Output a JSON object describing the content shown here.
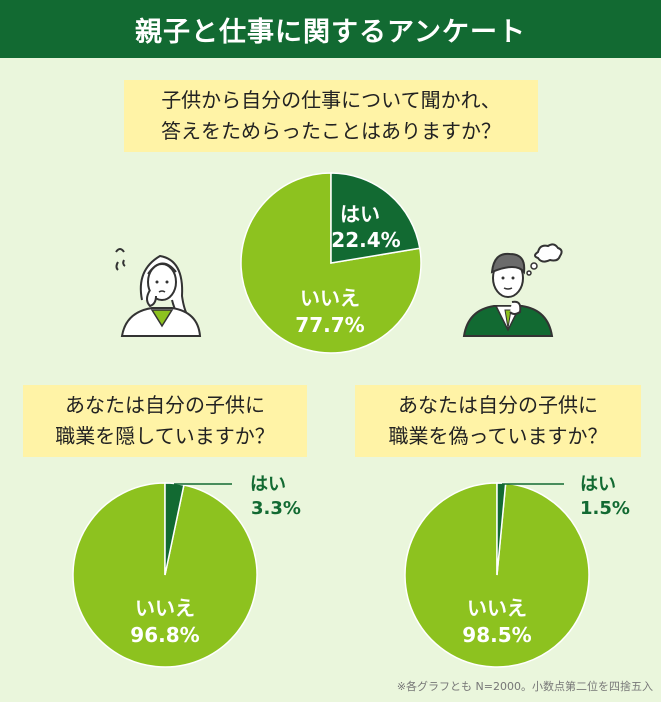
{
  "header": {
    "title": "親子と仕事に関するアンケート"
  },
  "colors": {
    "header_bg": "#126a32",
    "yes": "#126a32",
    "no": "#8dc21f",
    "question_bg": "#fff3a6",
    "background": "#eaf6dc"
  },
  "chart_data": [
    {
      "type": "pie",
      "question_lines": [
        "子供から自分の仕事について聞かれ、",
        "答えをためらったことはありますか？"
      ],
      "slices": [
        {
          "label": "はい",
          "value": 22.4,
          "display": "22.4%"
        },
        {
          "label": "いいえ",
          "value": 77.7,
          "display": "77.7%"
        }
      ]
    },
    {
      "type": "pie",
      "question_lines": [
        "あなたは自分の子供に",
        "職業を隠していますか？"
      ],
      "slices": [
        {
          "label": "はい",
          "value": 3.3,
          "display": "3.3%"
        },
        {
          "label": "いいえ",
          "value": 96.8,
          "display": "96.8%"
        }
      ]
    },
    {
      "type": "pie",
      "question_lines": [
        "あなたは自分の子供に",
        "職業を偽っていますか？"
      ],
      "slices": [
        {
          "label": "はい",
          "value": 1.5,
          "display": "1.5%"
        },
        {
          "label": "いいえ",
          "value": 98.5,
          "display": "98.5%"
        }
      ]
    }
  ],
  "footnote": "※各グラフとも N=2000。小数点第二位を四捨五入",
  "illustrations": [
    "worried-woman-icon",
    "thinking-man-icon"
  ]
}
